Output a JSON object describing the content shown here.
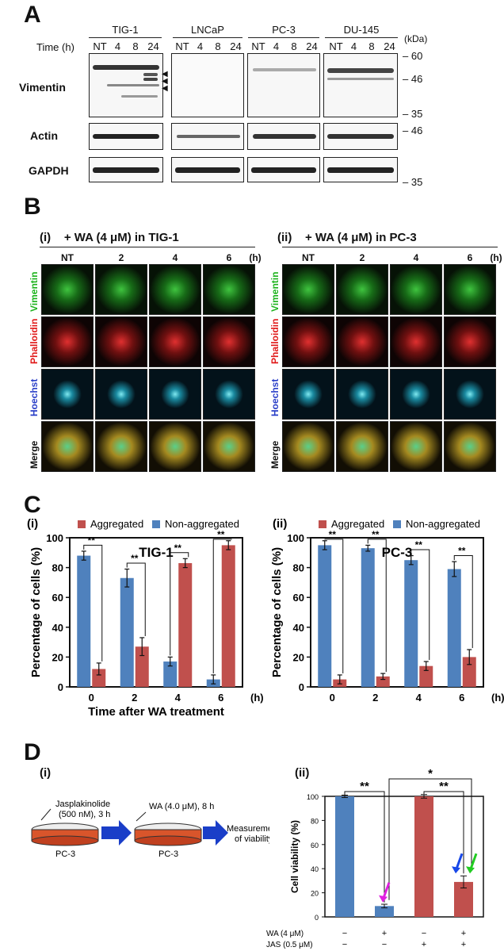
{
  "panelA": {
    "letter": "A",
    "time_label": "Time (h)",
    "kda_label": "(kDa)",
    "cell_lines": [
      "TIG-1",
      "LNCaP",
      "PC-3",
      "DU-145"
    ],
    "lanes": [
      "NT",
      "4",
      "8",
      "24"
    ],
    "rows": [
      "Vimentin",
      "Actin",
      "GAPDH"
    ],
    "markers": [
      "60",
      "46",
      "35",
      "46",
      "35"
    ]
  },
  "panelB": {
    "letter": "B",
    "left_title": "(i)    + WA (4 μM) in TIG-1",
    "right_title": "(ii)    + WA (4 μM) in PC-3",
    "cols": [
      "NT",
      "2",
      "4",
      "6"
    ],
    "unit": "(h)",
    "rows": [
      "Vimentin",
      "Phalloidin",
      "Hoechst",
      "Merge"
    ],
    "row_colors": [
      "#1db31d",
      "#e01818",
      "#2a3fc8",
      "#111111"
    ]
  },
  "panelC": {
    "letter": "C",
    "legend_aggregated": "Aggregated",
    "legend_nonaggregated": "Non-aggregated",
    "colors": {
      "aggregated": "#c0504d",
      "nonaggregated": "#4f81bd"
    },
    "sig": "**",
    "unit": "(h)"
  },
  "panelD": {
    "letter": "D",
    "sub_i": "(i)",
    "sub_ii": "(ii)",
    "jas_label_1": "Jasplakinolide",
    "jas_label_2": "(500 nM), 3 h",
    "wa_label": "WA (4.0 μM), 8 h",
    "dish_label": "PC-3",
    "measure_1": "Measurement",
    "measure_2": "of viability",
    "treat_rows": [
      {
        "label": "WA (4 μM)",
        "signs": [
          "−",
          "+",
          "−",
          "+"
        ]
      },
      {
        "label": "JAS (0.5 μM)",
        "signs": [
          "−",
          "−",
          "+",
          "+"
        ]
      }
    ],
    "sig_double": "**",
    "sig_single": "*"
  },
  "chart_data": [
    {
      "type": "bar",
      "panel": "C(i)",
      "title": "TIG-1",
      "xlabel": "Time after WA treatment",
      "ylabel": "Percentage of cells (%)",
      "categories": [
        "0",
        "2",
        "4",
        "6"
      ],
      "ylim": [
        0,
        100
      ],
      "yticks": [
        "0",
        "20",
        "40",
        "60",
        "80",
        "100"
      ],
      "series": [
        {
          "name": "Non-aggregated",
          "values": [
            88,
            73,
            17,
            5
          ],
          "errors": [
            3,
            6,
            3,
            3
          ]
        },
        {
          "name": "Aggregated",
          "values": [
            12,
            27,
            83,
            95
          ],
          "errors": [
            4,
            6,
            3,
            3
          ]
        }
      ]
    },
    {
      "type": "bar",
      "panel": "C(ii)",
      "title": "PC-3",
      "xlabel": "",
      "ylabel": "Percentage of cells (%)",
      "categories": [
        "0",
        "2",
        "4",
        "6"
      ],
      "ylim": [
        0,
        100
      ],
      "yticks": [
        "0",
        "20",
        "40",
        "60",
        "80",
        "100"
      ],
      "series": [
        {
          "name": "Non-aggregated",
          "values": [
            95,
            93,
            85,
            79
          ],
          "errors": [
            3,
            2,
            3,
            5
          ]
        },
        {
          "name": "Aggregated",
          "values": [
            5,
            7,
            14,
            20
          ],
          "errors": [
            3,
            2,
            3,
            5
          ]
        }
      ]
    },
    {
      "type": "bar",
      "panel": "D(ii)",
      "ylabel": "Cell viability (%)",
      "categories": [
        "1",
        "2",
        "3",
        "4"
      ],
      "ylim": [
        0,
        100
      ],
      "yticks": [
        "0",
        "20",
        "40",
        "60",
        "80",
        "100"
      ],
      "values": [
        100,
        9,
        100,
        29
      ],
      "errors": [
        1,
        1.5,
        1.5,
        5
      ],
      "colors": [
        "#4f81bd",
        "#4f81bd",
        "#c0504d",
        "#c0504d"
      ]
    }
  ]
}
